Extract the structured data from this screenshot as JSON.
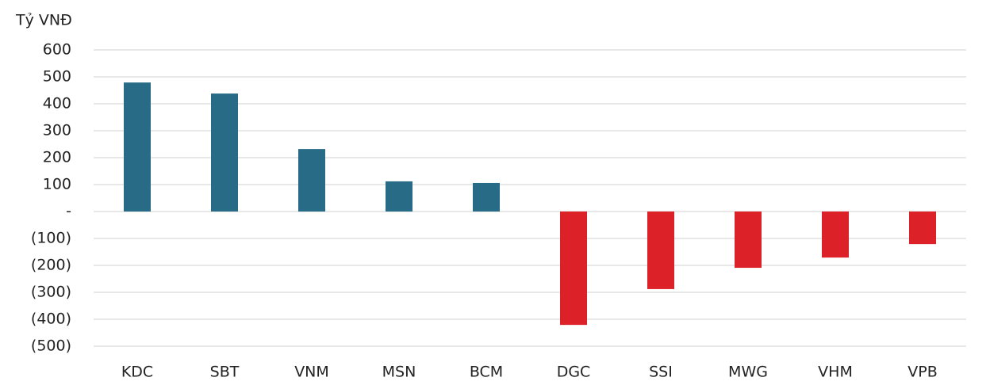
{
  "chart_data": {
    "type": "bar",
    "y_axis_label": "Tỷ VNĐ",
    "categories": [
      "KDC",
      "SBT",
      "VNM",
      "MSN",
      "BCM",
      "DGC",
      "SSI",
      "MWG",
      "VHM",
      "VPB"
    ],
    "values": [
      479,
      438,
      232,
      112,
      106,
      -421,
      -288,
      -209,
      -171,
      -121
    ],
    "colors": [
      "#286b86",
      "#286b86",
      "#286b86",
      "#286b86",
      "#286b86",
      "#dc2128",
      "#dc2128",
      "#dc2128",
      "#dc2128",
      "#dc2128"
    ],
    "ylim": [
      -500,
      600
    ],
    "yticks": [
      600,
      500,
      400,
      300,
      200,
      100,
      {
        "value": 0,
        "label": "-"
      },
      {
        "value": -100,
        "label": "(100)"
      },
      {
        "value": -200,
        "label": "(200)"
      },
      {
        "value": -300,
        "label": "(300)"
      },
      {
        "value": -400,
        "label": "(400)"
      },
      {
        "value": -500,
        "label": "(500)"
      }
    ],
    "grid": true
  }
}
